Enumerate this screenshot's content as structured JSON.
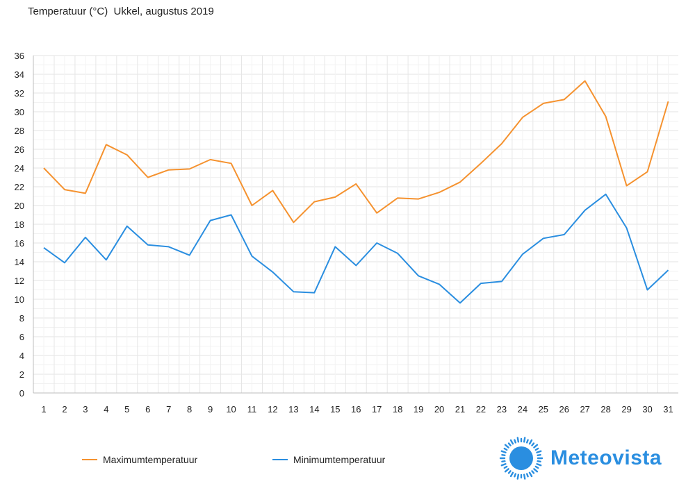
{
  "chart_data": {
    "type": "line",
    "title": "Temperatuur (°C)  Ukkel, augustus 2019",
    "xlabel": "",
    "ylabel": "",
    "ylim": [
      0,
      36
    ],
    "yticks": [
      0,
      2,
      4,
      6,
      8,
      10,
      12,
      14,
      16,
      18,
      20,
      22,
      24,
      26,
      28,
      30,
      32,
      34,
      36
    ],
    "categories": [
      "1",
      "2",
      "3",
      "4",
      "5",
      "6",
      "7",
      "8",
      "9",
      "10",
      "11",
      "12",
      "13",
      "14",
      "15",
      "16",
      "17",
      "18",
      "19",
      "20",
      "21",
      "22",
      "23",
      "24",
      "25",
      "26",
      "27",
      "28",
      "29",
      "30",
      "31"
    ],
    "series": [
      {
        "name": "Maximumtemperatuur",
        "color": "#f5922f",
        "values": [
          24.0,
          21.7,
          21.3,
          26.5,
          25.4,
          23.0,
          23.8,
          23.9,
          24.9,
          24.5,
          20.0,
          21.6,
          18.2,
          20.4,
          20.9,
          22.3,
          19.2,
          20.8,
          20.7,
          21.4,
          22.5,
          24.5,
          26.6,
          29.4,
          30.9,
          31.3,
          33.3,
          29.5,
          22.1,
          23.6,
          31.1
        ]
      },
      {
        "name": "Minimumtemperatuur",
        "color": "#2a8ee0",
        "values": [
          15.5,
          13.9,
          16.6,
          14.2,
          17.8,
          15.8,
          15.6,
          14.7,
          18.4,
          19.0,
          14.6,
          12.9,
          10.8,
          10.7,
          15.6,
          13.6,
          16.0,
          14.9,
          12.5,
          11.6,
          9.6,
          11.7,
          11.9,
          14.8,
          16.5,
          16.9,
          19.5,
          21.2,
          17.6,
          11.0,
          13.1
        ]
      }
    ],
    "grid": true,
    "legend": "bottom-left"
  },
  "brand": {
    "name": "Meteovista",
    "color": "#2a8ee0",
    "icon": "sun-icon"
  }
}
